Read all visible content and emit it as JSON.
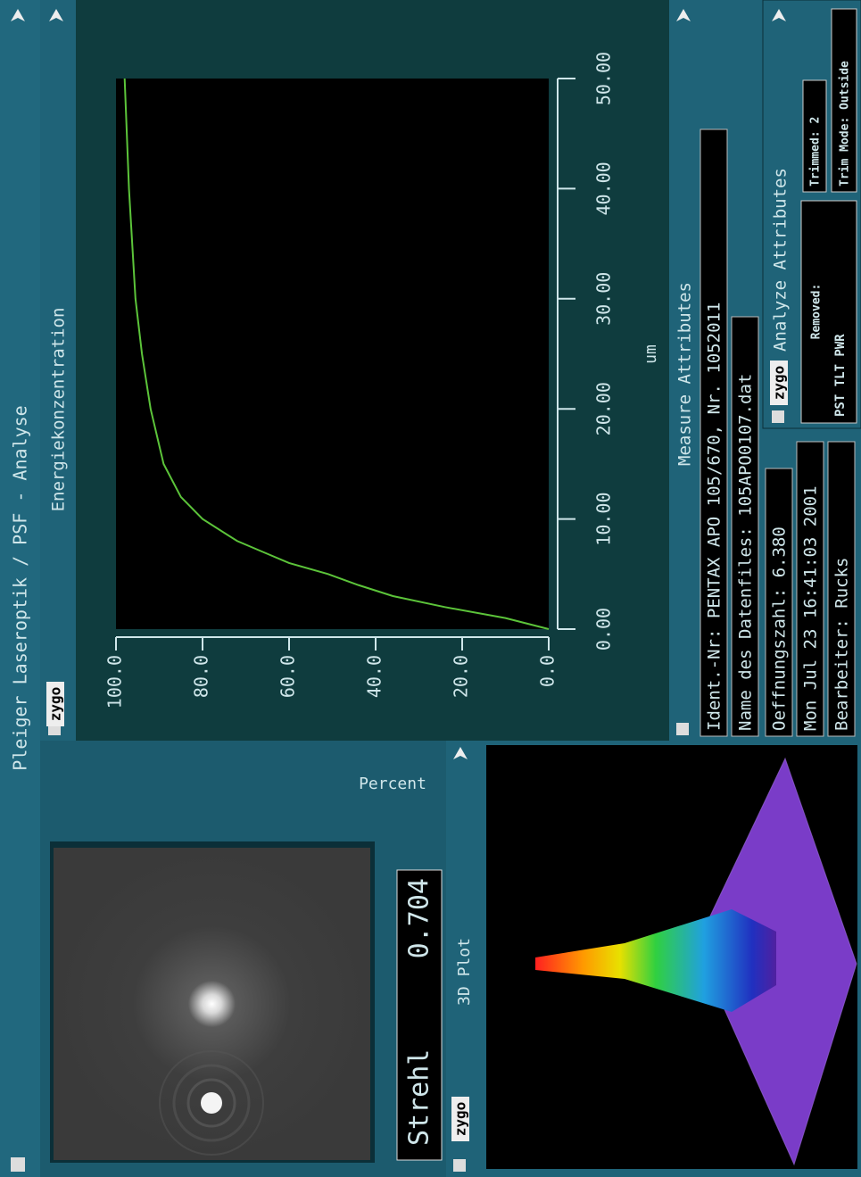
{
  "title": "Pleiger Laseroptik / PSF - Analyse",
  "logo": "zygo",
  "psf_panel": {
    "strehl_label": "Strehl",
    "strehl_value": "0.704"
  },
  "plot3d_panel": {
    "title": "3D Plot"
  },
  "chart_data": {
    "type": "line",
    "title": "Energiekonzentration",
    "x_label": "um",
    "y_label": "Percent",
    "x": [
      0,
      1,
      2,
      3,
      4,
      5,
      6,
      7,
      8,
      10,
      12,
      15,
      20,
      25,
      30,
      40,
      50
    ],
    "series": [
      {
        "color": "#5cc43a",
        "values": [
          0,
          10,
          24,
          36,
          44,
          51,
          60,
          66,
          72,
          80,
          85,
          89,
          92,
          94,
          95.5,
          97,
          98
        ]
      }
    ],
    "xlim": [
      0,
      50
    ],
    "ylim": [
      0,
      100
    ],
    "xticks": [
      {
        "value": 0,
        "label": "0.00"
      },
      {
        "value": 10,
        "label": "10.00"
      },
      {
        "value": 20,
        "label": "20.00"
      },
      {
        "value": 30,
        "label": "30.00"
      },
      {
        "value": 40,
        "label": "40.00"
      },
      {
        "value": 50,
        "label": "50.00"
      }
    ],
    "yticks": [
      {
        "value": 0,
        "label": "0.0"
      },
      {
        "value": 20,
        "label": "20.0"
      },
      {
        "value": 40,
        "label": "40.0"
      },
      {
        "value": 60,
        "label": "60.0"
      },
      {
        "value": 80,
        "label": "80.0"
      },
      {
        "value": 100,
        "label": "100.0"
      }
    ]
  },
  "measure_attributes": {
    "title": "Measure Attributes",
    "rows": [
      "Ident.-Nr: PENTAX APO 105/670, Nr. 1052011",
      "Name des Datenfiles: 105APO0107.dat",
      "Oeffnungszahl:   6.380",
      "Mon Jul 23 16:41:03 2001",
      "Bearbeiter: Rucks"
    ]
  },
  "analyze_attributes": {
    "title": "Analyze Attributes",
    "removed_label": "Removed:",
    "removed_value": "PST TLT PWR",
    "trimmed": "Trimmed:  2",
    "trim_mode": "Trim Mode: Outside"
  }
}
